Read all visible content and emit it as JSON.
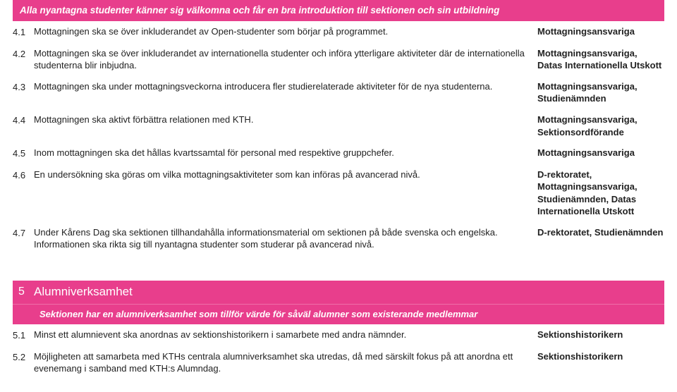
{
  "colors": {
    "accent": "#e83e8c",
    "text": "#222222",
    "background": "#ffffff"
  },
  "section4": {
    "banner": "Alla nyantagna studenter känner sig välkomna och får en bra introduktion till sektionen och sin utbildning",
    "rows": [
      {
        "num": "4.1",
        "desc": "Mottagningen ska se över inkluderandet av Open-studenter som börjar på programmet.",
        "resp": "Mottagningsansvariga"
      },
      {
        "num": "4.2",
        "desc": "Mottagningen ska se över inkluderandet av internationella studenter och införa ytterligare aktiviteter där de internationella studenterna blir inbjudna.",
        "resp": "Mottagningsansvariga, Datas Internationella Utskott"
      },
      {
        "num": "4.3",
        "desc": "Mottagningen ska under mottagningsveckorna introducera fler studierelaterade aktiviteter för de nya studenterna.",
        "resp": "Mottagningsansvariga, Studienämnden"
      },
      {
        "num": "4.4",
        "desc": "Mottagningen ska aktivt förbättra relationen med KTH.",
        "resp": "Mottagningsansvariga, Sektionsordförande"
      },
      {
        "num": "4.5",
        "desc": "Inom mottagningen ska det hållas kvartssamtal för personal med respektive gruppchefer.",
        "resp": "Mottagningsansvariga"
      },
      {
        "num": "4.6",
        "desc": "En undersökning ska göras om vilka mottagningsaktiviteter som kan införas på avancerad nivå.",
        "resp": "D-rektoratet, Mottagningsansvariga, Studienämnden, Datas Internationella Utskott"
      },
      {
        "num": "4.7",
        "desc": "Under Kårens Dag ska sektionen tillhandahålla informationsmaterial om sektionen på både svenska och engelska. Informationen ska rikta sig till nyantagna studenter som studerar på avancerad nivå.",
        "resp": "D-rektoratet, Studienämnden"
      }
    ]
  },
  "section5": {
    "number": "5",
    "title": "Alumniverksamhet",
    "banner": "Sektionen har en alumniverksamhet som tillför värde för såväl alumner som existerande medlemmar",
    "rows": [
      {
        "num": "5.1",
        "desc": "Minst ett alumnievent ska anordnas av sektionshistorikern i samarbete med andra nämnder.",
        "resp": "Sektionshistorikern"
      },
      {
        "num": "5.2",
        "desc": "Möjligheten att samarbeta med KTHs centrala alumniverksamhet ska utredas, då med särskilt fokus på att anordna ett evenemang i samband med KTH:s Alumndag.",
        "resp": "Sektionshistorikern"
      }
    ]
  }
}
